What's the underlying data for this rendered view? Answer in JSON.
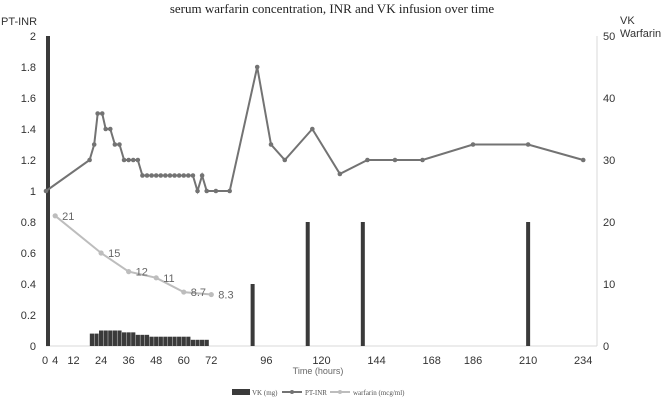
{
  "chart_data": {
    "type": "bar-line-combo",
    "title": "serum warfarin concentration, INR and VK infusion over time",
    "xlabel": "Time (hours)",
    "ylabel_left": "PT-INR",
    "ylabel_right_line1": "VK",
    "ylabel_right_line2": "Warfarin",
    "xlim": [
      0,
      240
    ],
    "x_ticks": [
      0,
      4,
      12,
      24,
      36,
      48,
      60,
      72,
      96,
      120,
      144,
      168,
      186,
      210,
      234
    ],
    "ylim_left": [
      0,
      2
    ],
    "y_ticks_left": [
      "0",
      "0.2",
      "0.4",
      "0.6",
      "0.8",
      "1",
      "1.2",
      "1.4",
      "1.6",
      "1.8",
      "2"
    ],
    "ylim_right": [
      0,
      50
    ],
    "y_ticks_right": [
      "0",
      "10",
      "20",
      "30",
      "40",
      "50"
    ],
    "grid": false,
    "legend_position": "bottom",
    "colors": {
      "vk": "#3a3a3a",
      "inr": "#737373",
      "warfarin": "#bdbdbd",
      "axis": "#d9d9d9"
    },
    "series": [
      {
        "name": "VK (mg)",
        "type": "bar",
        "axis": "right",
        "points": [
          {
            "x": 0,
            "y": 50
          },
          {
            "x": 20,
            "y": 2
          },
          {
            "x": 22,
            "y": 2
          },
          {
            "x": 24,
            "y": 2.5
          },
          {
            "x": 26,
            "y": 2.5
          },
          {
            "x": 28,
            "y": 2.5
          },
          {
            "x": 30,
            "y": 2.5
          },
          {
            "x": 32,
            "y": 2.5
          },
          {
            "x": 34,
            "y": 2.2
          },
          {
            "x": 36,
            "y": 2.2
          },
          {
            "x": 38,
            "y": 2.2
          },
          {
            "x": 40,
            "y": 1.8
          },
          {
            "x": 42,
            "y": 1.8
          },
          {
            "x": 44,
            "y": 1.8
          },
          {
            "x": 46,
            "y": 1.5
          },
          {
            "x": 48,
            "y": 1.5
          },
          {
            "x": 50,
            "y": 1.5
          },
          {
            "x": 52,
            "y": 1.5
          },
          {
            "x": 54,
            "y": 1.5
          },
          {
            "x": 56,
            "y": 1.5
          },
          {
            "x": 58,
            "y": 1.5
          },
          {
            "x": 60,
            "y": 1.5
          },
          {
            "x": 62,
            "y": 1.5
          },
          {
            "x": 64,
            "y": 1
          },
          {
            "x": 66,
            "y": 1
          },
          {
            "x": 68,
            "y": 1
          },
          {
            "x": 70,
            "y": 1
          },
          {
            "x": 90,
            "y": 10
          },
          {
            "x": 114,
            "y": 20
          },
          {
            "x": 138,
            "y": 20
          },
          {
            "x": 210,
            "y": 20
          }
        ]
      },
      {
        "name": "PT-INR",
        "type": "line",
        "axis": "left",
        "points": [
          {
            "x": 0,
            "y": 1.0
          },
          {
            "x": 19,
            "y": 1.2
          },
          {
            "x": 21,
            "y": 1.3
          },
          {
            "x": 22.5,
            "y": 1.5
          },
          {
            "x": 24.5,
            "y": 1.5
          },
          {
            "x": 26,
            "y": 1.4
          },
          {
            "x": 28,
            "y": 1.4
          },
          {
            "x": 30,
            "y": 1.3
          },
          {
            "x": 32,
            "y": 1.3
          },
          {
            "x": 34,
            "y": 1.2
          },
          {
            "x": 36,
            "y": 1.2
          },
          {
            "x": 38,
            "y": 1.2
          },
          {
            "x": 40,
            "y": 1.2
          },
          {
            "x": 42,
            "y": 1.1
          },
          {
            "x": 44,
            "y": 1.1
          },
          {
            "x": 46,
            "y": 1.1
          },
          {
            "x": 48,
            "y": 1.1
          },
          {
            "x": 50,
            "y": 1.1
          },
          {
            "x": 52,
            "y": 1.1
          },
          {
            "x": 54,
            "y": 1.1
          },
          {
            "x": 56,
            "y": 1.1
          },
          {
            "x": 58,
            "y": 1.1
          },
          {
            "x": 60,
            "y": 1.1
          },
          {
            "x": 62,
            "y": 1.1
          },
          {
            "x": 64,
            "y": 1.1
          },
          {
            "x": 66,
            "y": 1.0
          },
          {
            "x": 68,
            "y": 1.1
          },
          {
            "x": 70,
            "y": 1.0
          },
          {
            "x": 74,
            "y": 1.0
          },
          {
            "x": 80,
            "y": 1.0
          },
          {
            "x": 92,
            "y": 1.8
          },
          {
            "x": 98,
            "y": 1.3
          },
          {
            "x": 104,
            "y": 1.2
          },
          {
            "x": 116,
            "y": 1.4
          },
          {
            "x": 128,
            "y": 1.11
          },
          {
            "x": 140,
            "y": 1.2
          },
          {
            "x": 152,
            "y": 1.2
          },
          {
            "x": 164,
            "y": 1.2
          },
          {
            "x": 186,
            "y": 1.3
          },
          {
            "x": 210,
            "y": 1.3
          },
          {
            "x": 234,
            "y": 1.2
          }
        ]
      },
      {
        "name": "warfarin (mcg/ml)",
        "type": "line",
        "axis": "right",
        "points": [
          {
            "x": 4,
            "y": 21,
            "label": "21"
          },
          {
            "x": 24,
            "y": 15,
            "label": "15"
          },
          {
            "x": 36,
            "y": 12,
            "label": "12"
          },
          {
            "x": 48,
            "y": 11,
            "label": "11"
          },
          {
            "x": 60,
            "y": 8.7,
            "label": "8.7"
          },
          {
            "x": 72,
            "y": 8.3,
            "label": "8.3"
          }
        ]
      }
    ]
  }
}
